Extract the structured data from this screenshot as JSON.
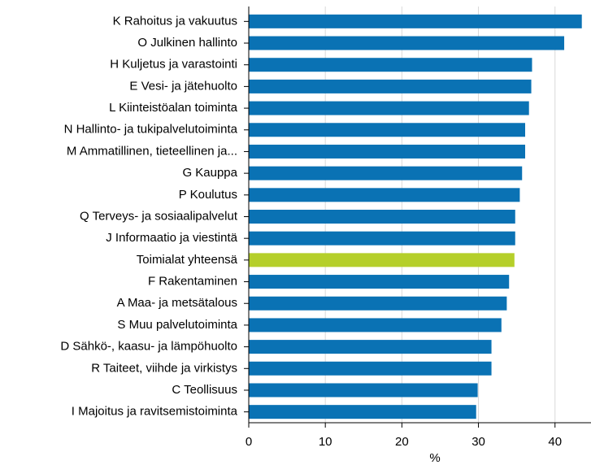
{
  "chart_data": {
    "type": "bar",
    "orientation": "horizontal",
    "x_label": "%",
    "categories": [
      "K Rahoitus ja vakuutus",
      "O Julkinen hallinto",
      "H Kuljetus ja varastointi",
      "E Vesi- ja jätehuolto",
      "L Kiinteistöalan toiminta",
      "N Hallinto- ja tukipalvelutoiminta",
      "M Ammatillinen, tieteellinen ja...",
      "G Kauppa",
      "P Koulutus",
      "Q Terveys- ja sosiaalipalvelut",
      "J Informaatio ja viestintä",
      "Toimialat yhteensä",
      "F Rakentaminen",
      "A Maa- ja metsätalous",
      "S Muu palvelutoiminta",
      "D Sähkö-, kaasu- ja lämpöhuolto",
      "R Taiteet, viihde ja virkistys",
      "C Teollisuus",
      "I Majoitus ja ravitsemistoiminta"
    ],
    "values": [
      43.5,
      41.2,
      37.0,
      36.9,
      36.6,
      36.1,
      36.1,
      35.7,
      35.4,
      34.8,
      34.8,
      34.7,
      34.0,
      33.7,
      33.0,
      31.7,
      31.7,
      29.9,
      29.7
    ],
    "colors": [
      "#0a72b4",
      "#0a72b4",
      "#0a72b4",
      "#0a72b4",
      "#0a72b4",
      "#0a72b4",
      "#0a72b4",
      "#0a72b4",
      "#0a72b4",
      "#0a72b4",
      "#0a72b4",
      "#b5cf2a",
      "#0a72b4",
      "#0a72b4",
      "#0a72b4",
      "#0a72b4",
      "#0a72b4",
      "#0a72b4",
      "#0a72b4"
    ],
    "xlim": [
      0,
      44.7
    ],
    "xticks": [
      0,
      10,
      20,
      30,
      40
    ],
    "grid": true
  }
}
